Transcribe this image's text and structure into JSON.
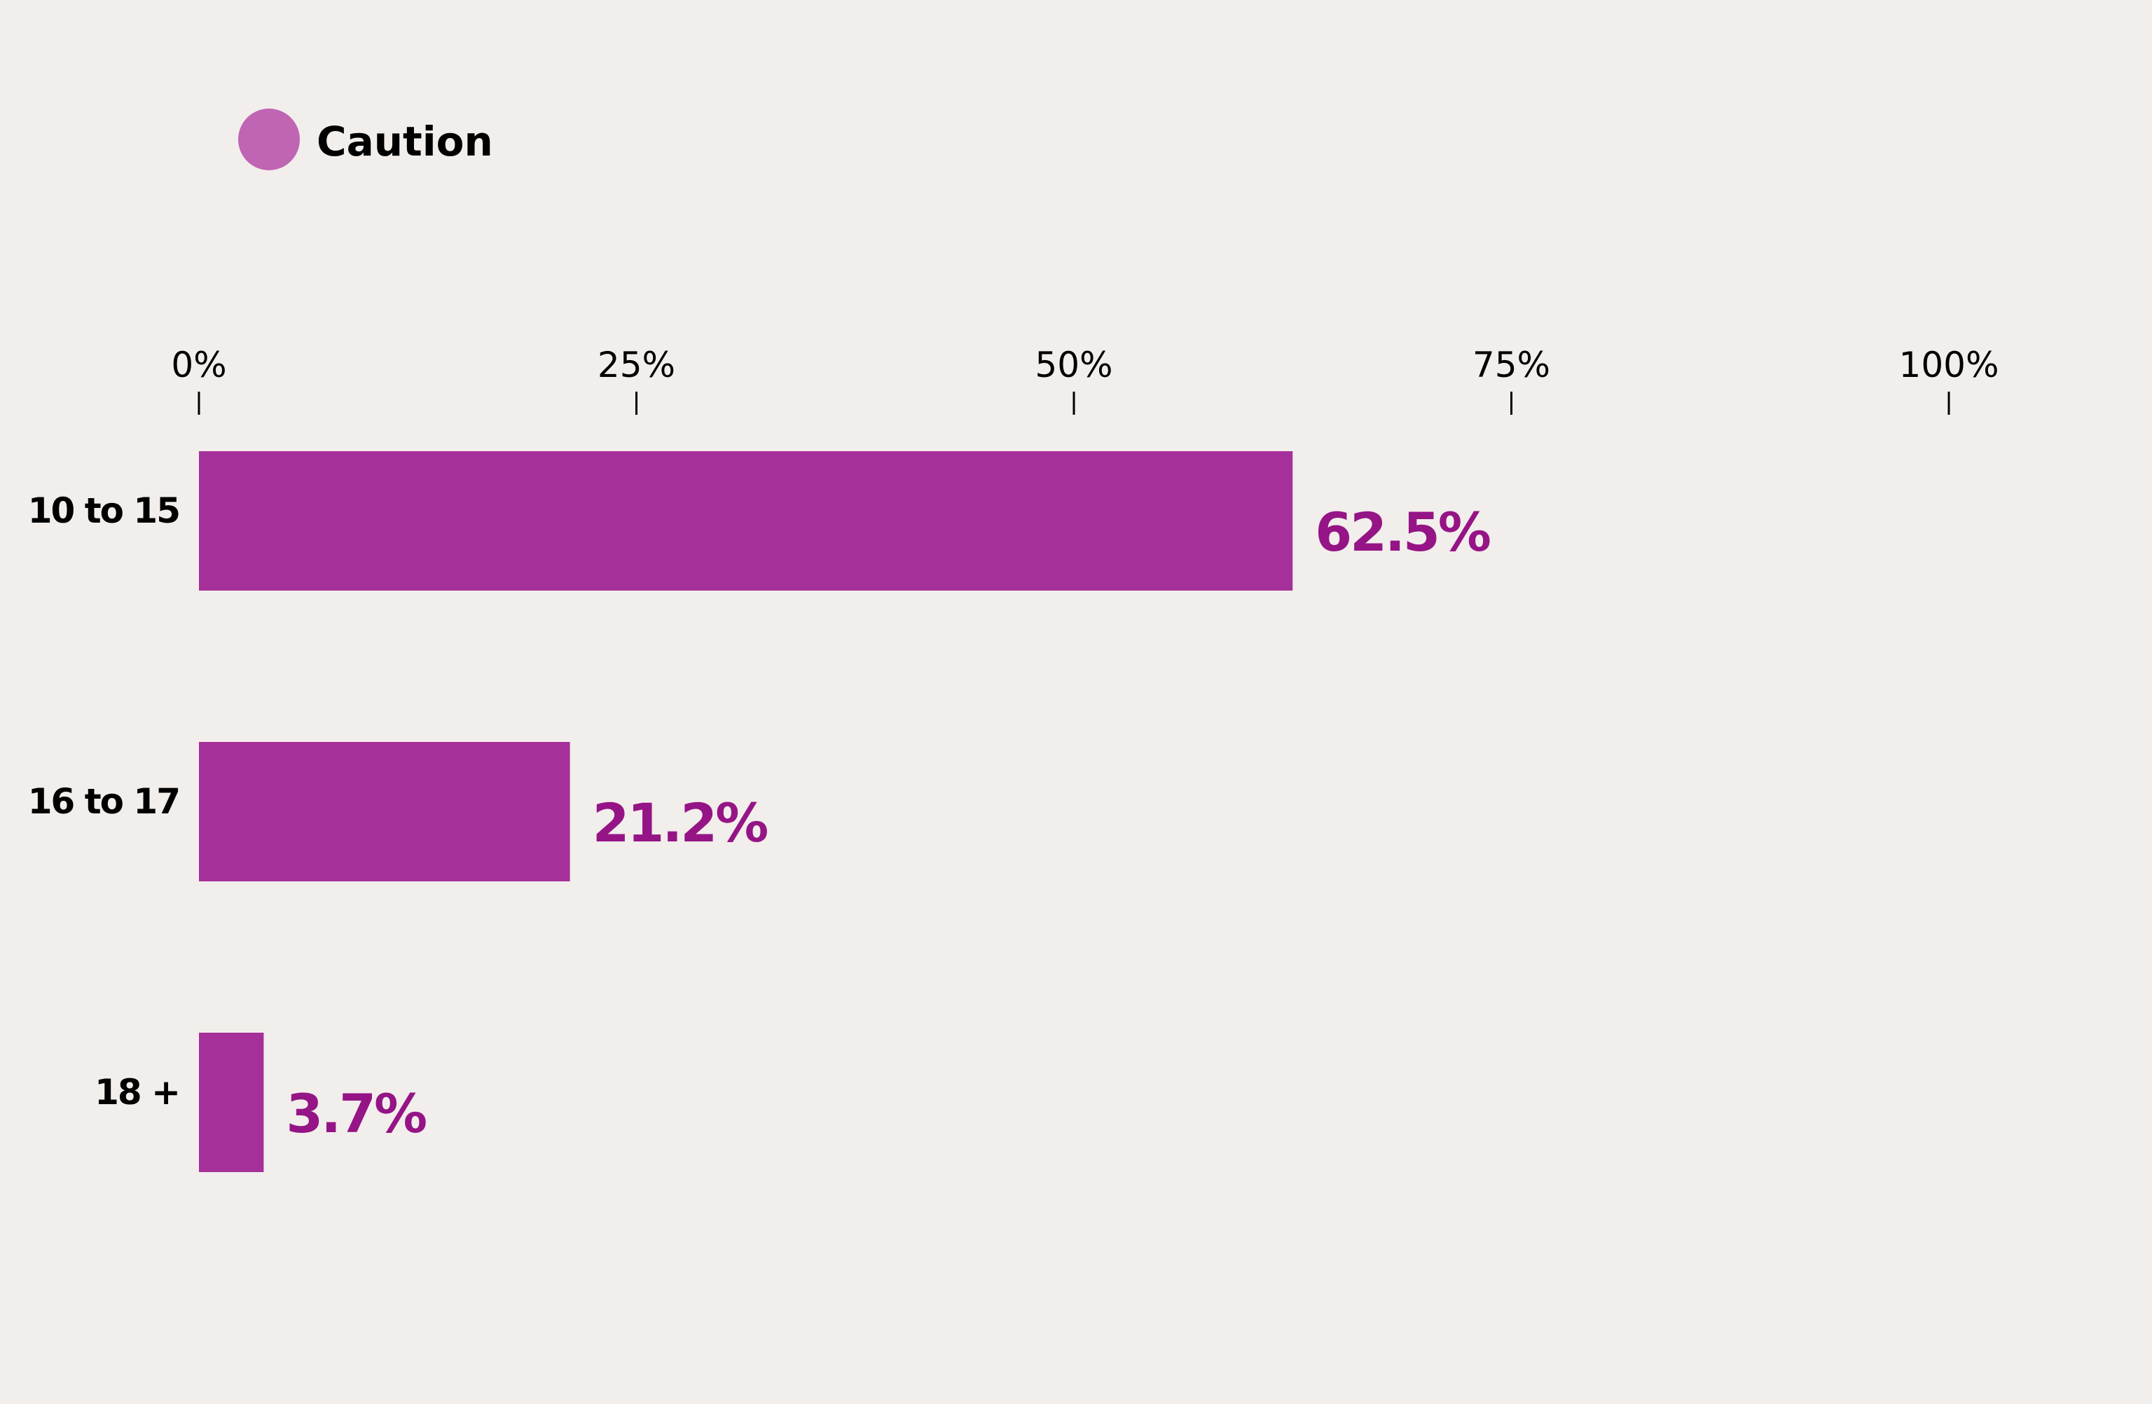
{
  "chart_data": {
    "type": "bar",
    "orientation": "horizontal",
    "categories": [
      "10 to 15",
      "16 to 17",
      "18 +"
    ],
    "series": [
      {
        "name": "Caution",
        "values": [
          62.5,
          21.2,
          3.7
        ],
        "value_labels": [
          "62.5%",
          "21.2%",
          "3.7%"
        ]
      }
    ],
    "xlim": [
      0,
      100
    ],
    "x_ticks": [
      0,
      25,
      50,
      75,
      100
    ],
    "x_tick_labels": [
      "0%",
      "25%",
      "50%",
      "75%",
      "100%"
    ],
    "axis_position": "top",
    "grid": false,
    "legend_position": "top-left"
  },
  "colors": {
    "background": "#f2eeeb",
    "bar": "#a63099",
    "legend_marker": "#c064b4",
    "value_text": "#951486",
    "text": "#000000"
  }
}
